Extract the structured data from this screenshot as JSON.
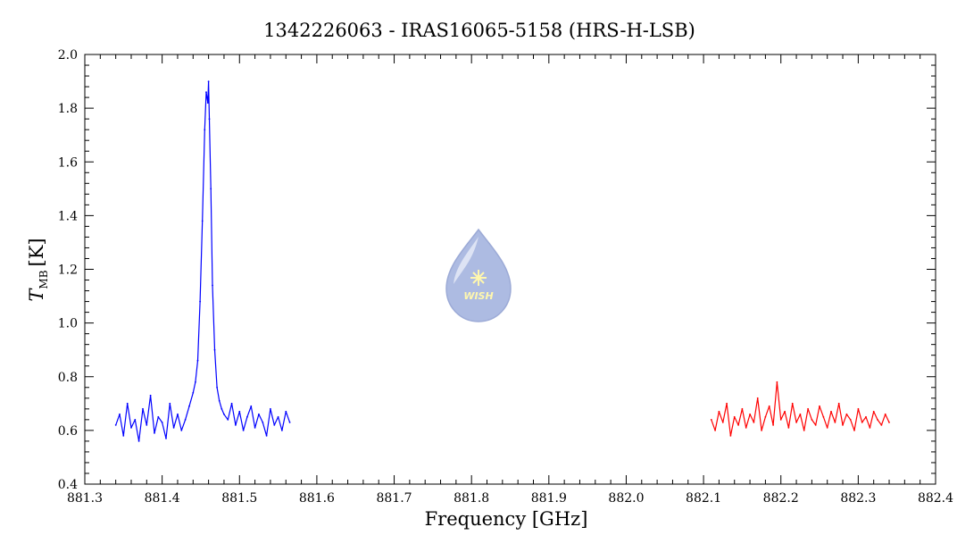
{
  "chart_data": {
    "type": "line",
    "title": "1342226063 - IRAS16065-5158 (HRS-H-LSB)",
    "xlabel": "Frequency [GHz]",
    "ylabel_main": "T",
    "ylabel_sub": "MB",
    "ylabel_unit": "[K]",
    "xlim": [
      881.3,
      882.4
    ],
    "ylim": [
      0.4,
      2.0
    ],
    "x_ticks": [
      "881.3",
      "881.4",
      "881.5",
      "881.6",
      "881.7",
      "881.8",
      "881.9",
      "882.0",
      "882.1",
      "882.2",
      "882.3",
      "882.4"
    ],
    "y_ticks": [
      "0.4",
      "0.6",
      "0.8",
      "1.0",
      "1.2",
      "1.4",
      "1.6",
      "1.8",
      "2.0"
    ],
    "grid": false,
    "series": [
      {
        "color": "#0000ff",
        "x": [
          881.34,
          881.345,
          881.35,
          881.355,
          881.36,
          881.365,
          881.37,
          881.375,
          881.38,
          881.385,
          881.39,
          881.395,
          881.4,
          881.405,
          881.41,
          881.415,
          881.42,
          881.425,
          881.43,
          881.435,
          881.44,
          881.443,
          881.446,
          881.449,
          881.452,
          881.455,
          881.457,
          881.459,
          881.46,
          881.461,
          881.463,
          881.465,
          881.468,
          881.471,
          881.474,
          881.477,
          881.48,
          881.485,
          881.49,
          881.495,
          881.5,
          881.505,
          881.51,
          881.515,
          881.52,
          881.525,
          881.53,
          881.535,
          881.54,
          881.545,
          881.55,
          881.555,
          881.56,
          881.565
        ],
        "values": [
          0.62,
          0.66,
          0.58,
          0.7,
          0.61,
          0.64,
          0.56,
          0.68,
          0.62,
          0.73,
          0.59,
          0.65,
          0.63,
          0.57,
          0.7,
          0.61,
          0.66,
          0.6,
          0.64,
          0.69,
          0.74,
          0.78,
          0.86,
          1.08,
          1.38,
          1.72,
          1.86,
          1.82,
          1.9,
          1.76,
          1.5,
          1.14,
          0.9,
          0.76,
          0.71,
          0.68,
          0.66,
          0.64,
          0.7,
          0.62,
          0.67,
          0.6,
          0.65,
          0.69,
          0.61,
          0.66,
          0.63,
          0.58,
          0.68,
          0.62,
          0.65,
          0.6,
          0.67,
          0.63
        ]
      },
      {
        "color": "#ff0000",
        "x": [
          882.11,
          882.115,
          882.12,
          882.125,
          882.13,
          882.135,
          882.14,
          882.145,
          882.15,
          882.155,
          882.16,
          882.165,
          882.17,
          882.175,
          882.18,
          882.185,
          882.19,
          882.195,
          882.2,
          882.205,
          882.21,
          882.215,
          882.22,
          882.225,
          882.23,
          882.235,
          882.24,
          882.245,
          882.25,
          882.255,
          882.26,
          882.265,
          882.27,
          882.275,
          882.28,
          882.285,
          882.29,
          882.295,
          882.3,
          882.305,
          882.31,
          882.315,
          882.32,
          882.325,
          882.33,
          882.335,
          882.34
        ],
        "values": [
          0.64,
          0.6,
          0.67,
          0.63,
          0.7,
          0.58,
          0.65,
          0.62,
          0.68,
          0.61,
          0.66,
          0.63,
          0.72,
          0.6,
          0.65,
          0.69,
          0.62,
          0.78,
          0.64,
          0.67,
          0.61,
          0.7,
          0.63,
          0.66,
          0.6,
          0.68,
          0.64,
          0.62,
          0.69,
          0.65,
          0.61,
          0.67,
          0.63,
          0.7,
          0.62,
          0.66,
          0.64,
          0.6,
          0.68,
          0.63,
          0.65,
          0.61,
          0.67,
          0.64,
          0.62,
          0.66,
          0.63
        ]
      }
    ]
  },
  "watermark": {
    "text": "WISH",
    "icon": "water-drop-star-icon",
    "color": "#a7b6e0"
  }
}
